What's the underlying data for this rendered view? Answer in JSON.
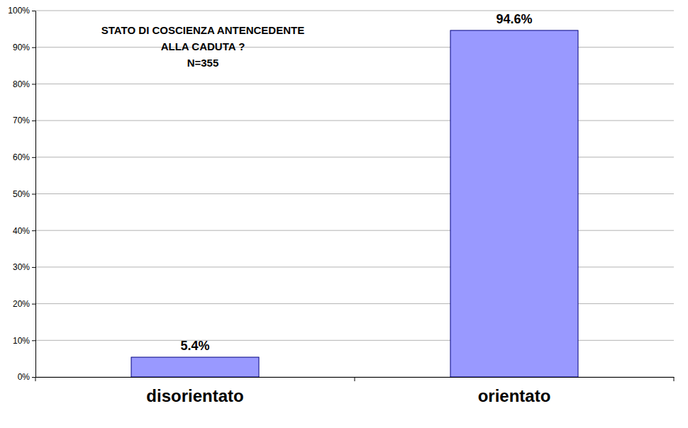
{
  "chart_data": {
    "type": "bar",
    "title": [
      "STATO DI COSCIENZA ANTENCEDENTE",
      "ALLA CADUTA ?",
      "N=355"
    ],
    "categories": [
      "disorientato",
      "orientato"
    ],
    "values": [
      5.4,
      94.6
    ],
    "value_labels": [
      "5.4%",
      "94.6%"
    ],
    "data_labels": true,
    "color": "#9999ff",
    "ylim": [
      0,
      100
    ],
    "yticks": [
      {
        "value": 0,
        "label": "0%"
      },
      {
        "value": 10,
        "label": "10%"
      },
      {
        "value": 20,
        "label": "20%"
      },
      {
        "value": 30,
        "label": "30%"
      },
      {
        "value": 40,
        "label": "40%"
      },
      {
        "value": 50,
        "label": "50%"
      },
      {
        "value": 60,
        "label": "60%"
      },
      {
        "value": 70,
        "label": "70%"
      },
      {
        "value": 80,
        "label": "80%"
      },
      {
        "value": 90,
        "label": "90%"
      },
      {
        "value": 100,
        "label": "100%"
      }
    ],
    "grid": true
  }
}
